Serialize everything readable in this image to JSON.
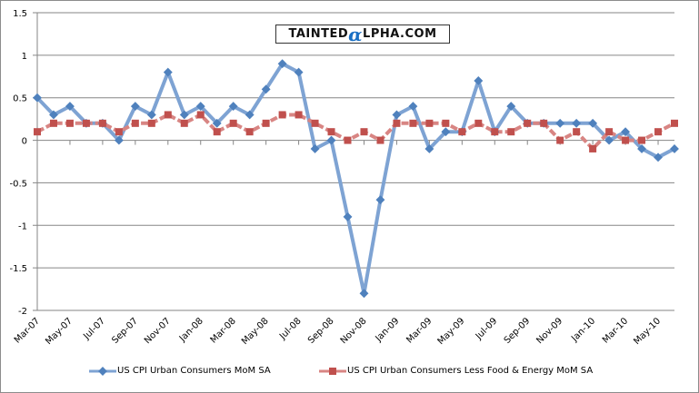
{
  "chart_data": {
    "type": "line",
    "title": "",
    "xlabel": "",
    "ylabel": "",
    "ylim": [
      -2,
      1.5
    ],
    "yticks": [
      "1.5",
      "1",
      "0.5",
      "0",
      "-0.5",
      "-1",
      "-1.5",
      "-2"
    ],
    "ytick_values": [
      1.5,
      1,
      0.5,
      0,
      -0.5,
      -1,
      -1.5,
      -2
    ],
    "grid": true,
    "legend_position": "bottom",
    "x": [
      "Mar-07",
      "Apr-07",
      "May-07",
      "Jun-07",
      "Jul-07",
      "Aug-07",
      "Sep-07",
      "Oct-07",
      "Nov-07",
      "Dec-07",
      "Jan-08",
      "Feb-08",
      "Mar-08",
      "Apr-08",
      "May-08",
      "Jun-08",
      "Jul-08",
      "Aug-08",
      "Sep-08",
      "Oct-08",
      "Nov-08",
      "Dec-08",
      "Jan-09",
      "Feb-09",
      "Mar-09",
      "Apr-09",
      "May-09",
      "Jun-09",
      "Jul-09",
      "Aug-09",
      "Sep-09",
      "Oct-09",
      "Nov-09",
      "Dec-09",
      "Jan-10",
      "Feb-10",
      "Mar-10",
      "Apr-10",
      "May-10",
      "Jun-10"
    ],
    "xtick_labels": [
      "Mar-07",
      "May-07",
      "Jul-07",
      "Sep-07",
      "Nov-07",
      "Jan-08",
      "Mar-08",
      "May-08",
      "Jul-08",
      "Sep-08",
      "Nov-08",
      "Jan-09",
      "Mar-09",
      "May-09",
      "Jul-09",
      "Sep-09",
      "Nov-09",
      "Jan-10",
      "Mar-10",
      "May-10"
    ],
    "series": [
      {
        "name": "US CPI Urban Consumers MoM SA",
        "color": "#4f81bd",
        "line_color": "#7ea3d3",
        "marker": "diamond",
        "values": [
          0.5,
          0.3,
          0.4,
          0.2,
          0.2,
          0.0,
          0.4,
          0.3,
          0.8,
          0.3,
          0.4,
          0.2,
          0.4,
          0.3,
          0.6,
          0.9,
          0.8,
          -0.1,
          0.0,
          -0.9,
          -1.8,
          -0.7,
          0.3,
          0.4,
          -0.1,
          0.1,
          0.1,
          0.7,
          0.1,
          0.4,
          0.2,
          0.2,
          0.2,
          0.2,
          0.2,
          0.0,
          0.1,
          -0.1,
          -0.2,
          -0.1
        ]
      },
      {
        "name": "US CPI Urban Consumers Less Food & Energy MoM SA",
        "color": "#c0504d",
        "line_color": "#d88583",
        "marker": "square",
        "values": [
          0.1,
          0.2,
          0.2,
          0.2,
          0.2,
          0.1,
          0.2,
          0.2,
          0.3,
          0.2,
          0.3,
          0.1,
          0.2,
          0.1,
          0.2,
          0.3,
          0.3,
          0.2,
          0.1,
          0.0,
          0.1,
          0.0,
          0.2,
          0.2,
          0.2,
          0.2,
          0.1,
          0.2,
          0.1,
          0.1,
          0.2,
          0.2,
          0.0,
          0.1,
          -0.1,
          0.1,
          0.0,
          0.0,
          0.1,
          0.2
        ]
      }
    ]
  },
  "watermark": {
    "prefix": "TAINTED",
    "alpha": "α",
    "suffix": "LPHA.COM"
  }
}
